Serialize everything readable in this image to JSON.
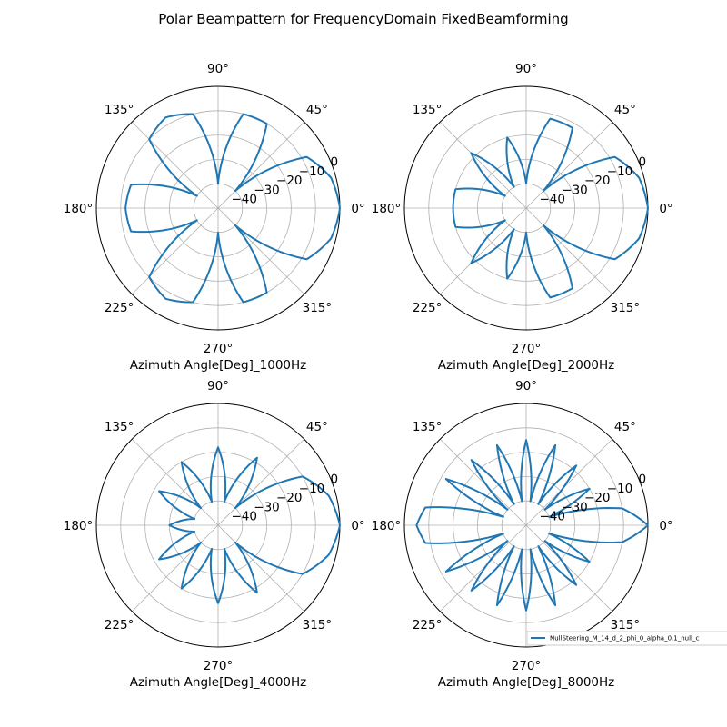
{
  "figure": {
    "title": "Polar Beampattern for FrequencyDomain FixedBeamforming"
  },
  "chart_data": [
    {
      "type": "line",
      "projection": "polar",
      "xlabel": "Azimuth Angle[Deg]_1000Hz",
      "angle_ticks": [
        "0°",
        "45°",
        "90°",
        "135°",
        "180°",
        "225°",
        "270°",
        "315°"
      ],
      "radial_ticks": [
        "−40",
        "−30",
        "−20",
        "−10",
        "0"
      ],
      "rlim": [
        -50,
        0
      ],
      "grid": true,
      "series": [
        {
          "color": "#1f77b4",
          "angle_deg": [
            0,
            15,
            30,
            45,
            60,
            75,
            90,
            105,
            120,
            135,
            150,
            165,
            180,
            195,
            210,
            225,
            240,
            255,
            270,
            285,
            300,
            315,
            330,
            345
          ],
          "gain_db": [
            0,
            -2,
            -8,
            -40,
            -10,
            -10,
            -40,
            -10,
            -7,
            -10,
            -40,
            -13,
            -12,
            -13,
            -40,
            -10,
            -7,
            -10,
            -40,
            -10,
            -10,
            -40,
            -8,
            -2
          ]
        }
      ]
    },
    {
      "type": "line",
      "projection": "polar",
      "xlabel": "Azimuth Angle[Deg]_2000Hz",
      "angle_ticks": [
        "0°",
        "45°",
        "90°",
        "135°",
        "180°",
        "225°",
        "270°",
        "315°"
      ],
      "radial_ticks": [
        "−40",
        "−30",
        "−20",
        "−10",
        "0"
      ],
      "rlim": [
        -50,
        0
      ],
      "grid": true,
      "series": [
        {
          "color": "#1f77b4",
          "angle_deg": [
            0,
            15,
            30,
            45,
            60,
            75,
            90,
            105,
            120,
            135,
            150,
            165,
            180,
            195,
            210,
            225,
            240,
            255,
            270,
            285,
            300,
            315,
            330,
            345
          ],
          "gain_db": [
            0,
            -2,
            -8,
            -40,
            -12,
            -12,
            -40,
            -20,
            -40,
            -18,
            -40,
            -20,
            -20,
            -20,
            -40,
            -18,
            -40,
            -20,
            -40,
            -12,
            -12,
            -40,
            -8,
            -2
          ]
        }
      ]
    },
    {
      "type": "line",
      "projection": "polar",
      "xlabel": "Azimuth Angle[Deg]_4000Hz",
      "angle_ticks": [
        "0°",
        "45°",
        "90°",
        "135°",
        "180°",
        "225°",
        "270°",
        "315°"
      ],
      "radial_ticks": [
        "−40",
        "−30",
        "−20",
        "−10",
        "0"
      ],
      "rlim": [
        -50,
        0
      ],
      "grid": true,
      "series": [
        {
          "color": "#1f77b4",
          "angle_deg": [
            0,
            15,
            30,
            45,
            60,
            75,
            90,
            105,
            120,
            135,
            150,
            165,
            180,
            195,
            210,
            225,
            240,
            255,
            270,
            285,
            300,
            315,
            330,
            345
          ],
          "gain_db": [
            0,
            -3,
            -10,
            -40,
            -18,
            -40,
            -18,
            -40,
            -20,
            -40,
            -22,
            -40,
            -30,
            -40,
            -22,
            -40,
            -20,
            -40,
            -18,
            -40,
            -18,
            -40,
            -10,
            -3
          ]
        }
      ]
    },
    {
      "type": "line",
      "projection": "polar",
      "xlabel": "Azimuth Angle[Deg]_8000Hz",
      "angle_ticks": [
        "0°",
        "45°",
        "90°",
        "135°",
        "180°",
        "225°",
        "270°",
        "315°"
      ],
      "radial_ticks": [
        "−40",
        "−30",
        "−20",
        "−10",
        "0"
      ],
      "rlim": [
        -50,
        0
      ],
      "grid": true,
      "series": [
        {
          "name": "NullSteering_M_14_d_2_phi_0_alpha_0.1_null_c",
          "color": "#1f77b4",
          "angle_deg": [
            0,
            10,
            20,
            30,
            40,
            50,
            60,
            70,
            80,
            90,
            100,
            110,
            120,
            130,
            140,
            150,
            160,
            170,
            180,
            190,
            200,
            210,
            220,
            230,
            240,
            250,
            260,
            270,
            280,
            290,
            300,
            310,
            320,
            330,
            340,
            350
          ],
          "gain_db": [
            0,
            -10,
            -40,
            -20,
            -40,
            -18,
            -40,
            -15,
            -40,
            -15,
            -40,
            -15,
            -40,
            -15,
            -40,
            -12,
            -40,
            -8,
            -5,
            -8,
            -40,
            -12,
            -40,
            -15,
            -40,
            -15,
            -40,
            -15,
            -40,
            -15,
            -40,
            -18,
            -40,
            -20,
            -40,
            -10
          ]
        }
      ]
    }
  ],
  "legend": {
    "label": "NullSteering_M_14_d_2_phi_0_alpha_0.1_null_c",
    "placement": "bottom-right of last subplot"
  }
}
